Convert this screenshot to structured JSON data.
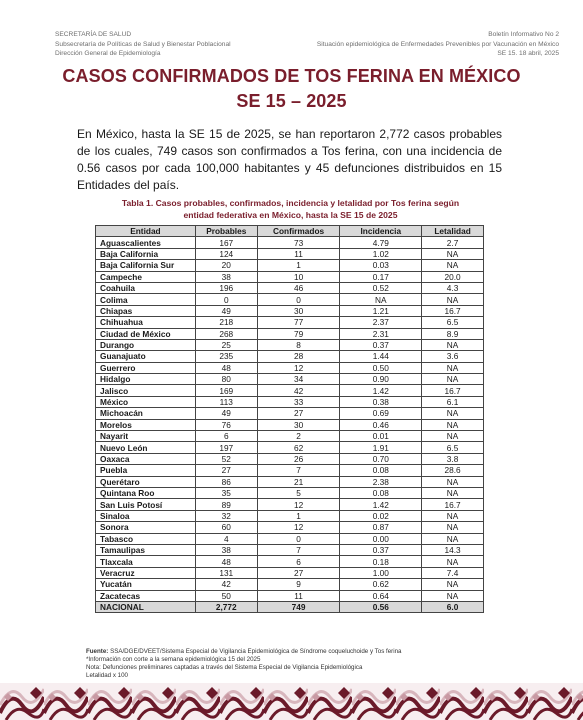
{
  "header": {
    "left": [
      "SECRETARÍA DE SALUD",
      "Subsecretaría de Políticas de Salud y Bienestar Poblacional",
      "Dirección General de Epidemiología"
    ],
    "right": [
      "Boletín Informativo No 2",
      "Situación epidemiológica de Enfermedades Prevenibles por Vacunación en México",
      "SE 15.  18 abril, 2025"
    ]
  },
  "title": {
    "line1": "CASOS CONFIRMADOS DE TOS FERINA EN MÉXICO",
    "line2": "SE 15 – 2025"
  },
  "intro": "En México, hasta la SE 15 de 2025, se han reportaron 2,772 casos probables de los cuales, 749 casos son confirmados a Tos ferina, con una incidencia de 0.56 casos por cada 100,000 habitantes y 45 defunciones distribuidos en 15 Entidades del país.",
  "table_caption": {
    "line1": "Tabla 1. Casos probables, confirmados, incidencia y letalidad por Tos ferina según",
    "line2": "entidad federativa en México, hasta la SE 15 de 2025"
  },
  "table": {
    "headers": [
      "Entidad",
      "Probables",
      "Confirmados",
      "Incidencia",
      "Letalidad"
    ],
    "rows": [
      [
        "Aguascalientes",
        "167",
        "73",
        "4.79",
        "2.7"
      ],
      [
        "Baja California",
        "124",
        "11",
        "1.02",
        "NA"
      ],
      [
        "Baja California Sur",
        "20",
        "1",
        "0.03",
        "NA"
      ],
      [
        "Campeche",
        "38",
        "10",
        "0.17",
        "20.0"
      ],
      [
        "Coahuila",
        "196",
        "46",
        "0.52",
        "4.3"
      ],
      [
        "Colima",
        "0",
        "0",
        "NA",
        "NA"
      ],
      [
        "Chiapas",
        "49",
        "30",
        "1.21",
        "16.7"
      ],
      [
        "Chihuahua",
        "218",
        "77",
        "2.37",
        "6.5"
      ],
      [
        "Ciudad de México",
        "268",
        "79",
        "2.31",
        "8.9"
      ],
      [
        "Durango",
        "25",
        "8",
        "0.37",
        "NA"
      ],
      [
        "Guanajuato",
        "235",
        "28",
        "1.44",
        "3.6"
      ],
      [
        "Guerrero",
        "48",
        "12",
        "0.50",
        "NA"
      ],
      [
        "Hidalgo",
        "80",
        "34",
        "0.90",
        "NA"
      ],
      [
        "Jalisco",
        "169",
        "42",
        "1.42",
        "16.7"
      ],
      [
        "México",
        "113",
        "33",
        "0.38",
        "6.1"
      ],
      [
        "Michoacán",
        "49",
        "27",
        "0.69",
        "NA"
      ],
      [
        "Morelos",
        "76",
        "30",
        "0.46",
        "NA"
      ],
      [
        "Nayarit",
        "6",
        "2",
        "0.01",
        "NA"
      ],
      [
        "Nuevo León",
        "197",
        "62",
        "1.91",
        "6.5"
      ],
      [
        "Oaxaca",
        "52",
        "26",
        "0.70",
        "3.8"
      ],
      [
        "Puebla",
        "27",
        "7",
        "0.08",
        "28.6"
      ],
      [
        "Querétaro",
        "86",
        "21",
        "2.38",
        "NA"
      ],
      [
        "Quintana Roo",
        "35",
        "5",
        "0.08",
        "NA"
      ],
      [
        "San Luis Potosí",
        "89",
        "12",
        "1.42",
        "16.7"
      ],
      [
        "Sinaloa",
        "32",
        "1",
        "0.02",
        "NA"
      ],
      [
        "Sonora",
        "60",
        "12",
        "0.87",
        "NA"
      ],
      [
        "Tabasco",
        "4",
        "0",
        "0.00",
        "NA"
      ],
      [
        "Tamaulipas",
        "38",
        "7",
        "0.37",
        "14.3"
      ],
      [
        "Tlaxcala",
        "48",
        "6",
        "0.18",
        "NA"
      ],
      [
        "Veracruz",
        "131",
        "27",
        "1.00",
        "7.4"
      ],
      [
        "Yucatán",
        "42",
        "9",
        "0.62",
        "NA"
      ],
      [
        "Zacatecas",
        "50",
        "11",
        "0.64",
        "NA"
      ]
    ],
    "total": [
      "NACIONAL",
      "2,772",
      "749",
      "0.56",
      "6.0"
    ]
  },
  "notes": {
    "source_label": "Fuente:",
    "source": " SSA/DGE/DVEET/Sistema Especial de Vigilancia Epidemiológica de Síndrome coqueluchoide y Tos ferina",
    "lines": [
      "*Información con corte a la semana epidemiológica 15 del 2025",
      "Nota: Defunciones preliminares captadas a través del Sistema Especial de Vigilancia Epidemiológica",
      "Letalidad x 100"
    ]
  },
  "colors": {
    "accent": "#7a1e2c",
    "header_fill": "#d9d9d9",
    "band_dark": "#6b1a2a",
    "band_light": "#d8b6bd"
  }
}
